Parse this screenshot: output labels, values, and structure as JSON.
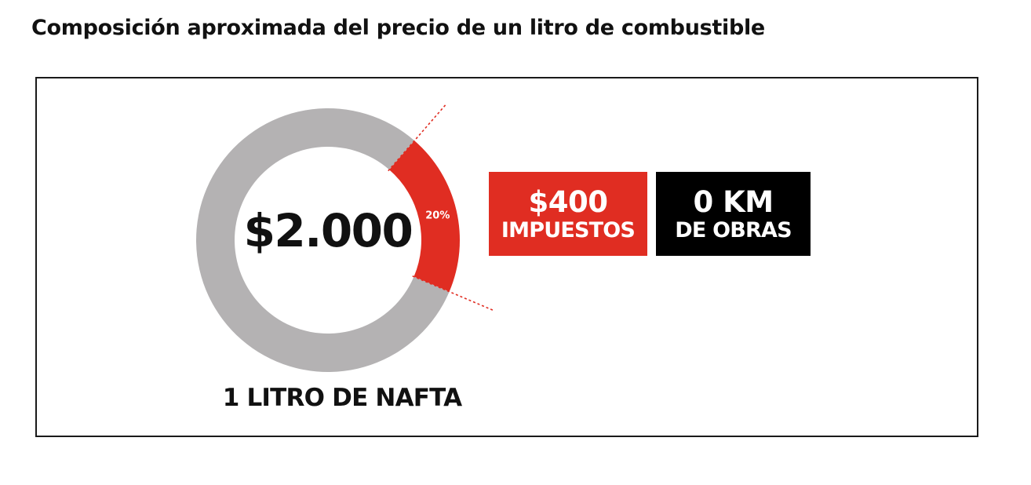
{
  "title": "Composición aproximada del precio de un litro de combustible",
  "colors": {
    "taxes": "#e02d22",
    "rest": "#b4b2b3",
    "obras_box": "#000000",
    "frame": "#1a1a1a"
  },
  "chart_data": {
    "type": "pie",
    "style": "donut",
    "center_label": "$2.000",
    "caption": "1 LITRO DE NAFTA",
    "slices": [
      {
        "value": 20,
        "label": "20%",
        "color": "#e02d22"
      },
      {
        "value": 80,
        "label": "",
        "color": "#b4b2b3"
      }
    ]
  },
  "callouts": {
    "taxes": {
      "amount": "$400",
      "label": "IMPUESTOS"
    },
    "obras": {
      "amount": "0 KM",
      "label": "DE OBRAS"
    }
  }
}
